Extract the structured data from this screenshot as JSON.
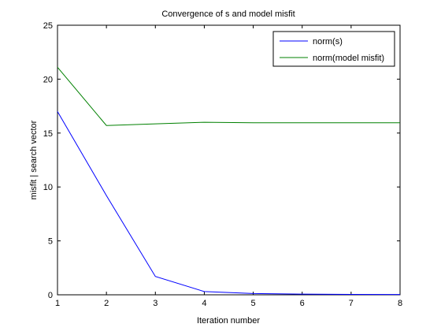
{
  "chart_data": {
    "type": "line",
    "title": "Convergence of s and model misfit",
    "xlabel": "Iteration number",
    "ylabel": "misfit | search vector",
    "xlim": [
      1,
      8
    ],
    "ylim": [
      0,
      25
    ],
    "xticks": [
      1,
      2,
      3,
      4,
      5,
      6,
      7,
      8
    ],
    "yticks": [
      0,
      5,
      10,
      15,
      20,
      25
    ],
    "grid": false,
    "legend_position": "top-right",
    "x": [
      1,
      2,
      3,
      4,
      5,
      6,
      7,
      8
    ],
    "series": [
      {
        "name": "norm(s)",
        "color": "#0000ff",
        "values": [
          17.0,
          9.2,
          1.7,
          0.3,
          0.12,
          0.06,
          0.04,
          0.03
        ]
      },
      {
        "name": "norm(model misfit)",
        "color": "#008000",
        "values": [
          21.1,
          15.7,
          15.85,
          16.0,
          15.95,
          15.95,
          15.95,
          15.95
        ]
      }
    ]
  }
}
